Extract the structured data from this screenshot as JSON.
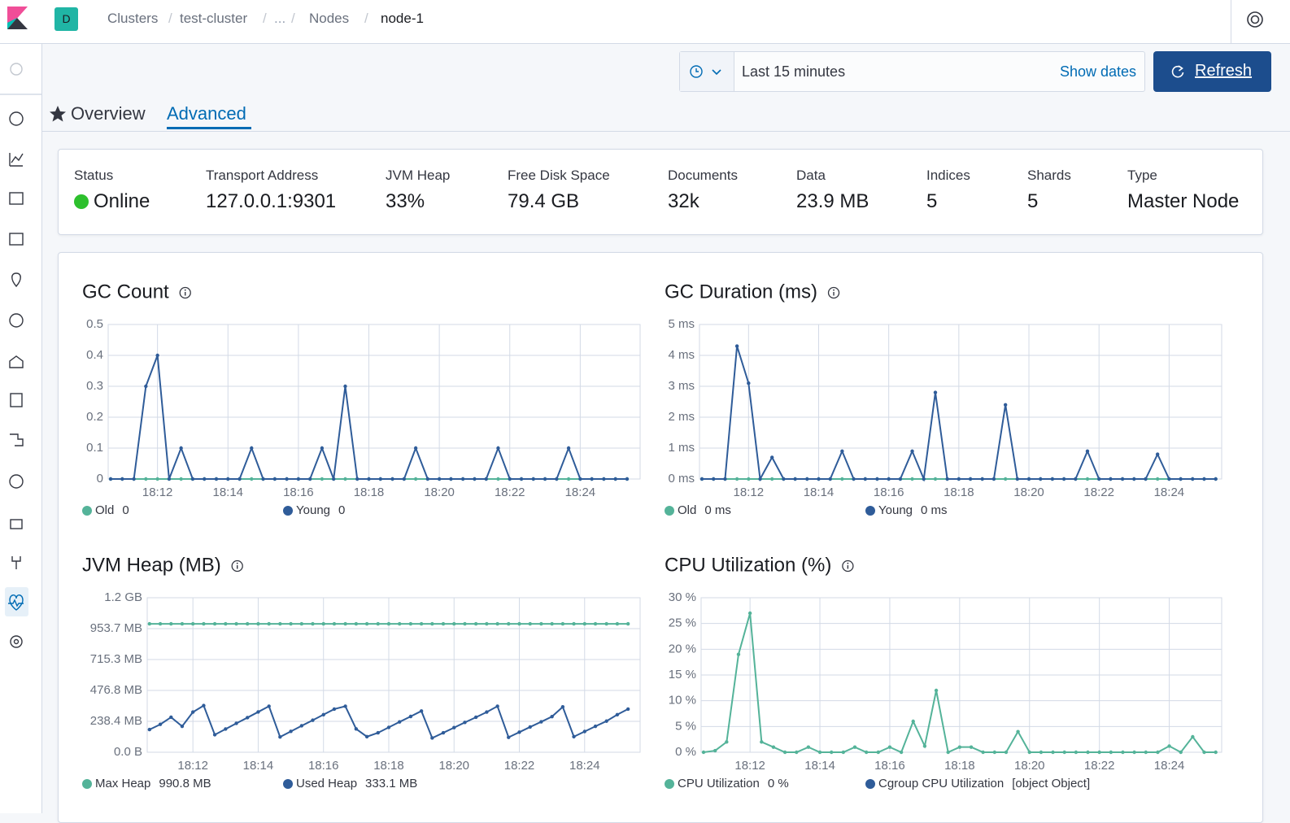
{
  "header": {
    "avatar": "D",
    "breadcrumbs": [
      "Clusters",
      "test-cluster",
      "...",
      "Nodes",
      "node-1"
    ]
  },
  "time_picker": {
    "range": "Last 15 minutes",
    "show_dates": "Show dates",
    "refresh": "Refresh"
  },
  "tabs": [
    "Overview",
    "Advanced"
  ],
  "stats": [
    {
      "label": "Status",
      "value": "Online"
    },
    {
      "label": "Transport Address",
      "value": "127.0.0.1:9301"
    },
    {
      "label": "JVM Heap",
      "value": "33%"
    },
    {
      "label": "Free Disk Space",
      "value": "79.4 GB"
    },
    {
      "label": "Documents",
      "value": "32k"
    },
    {
      "label": "Data",
      "value": "23.9 MB"
    },
    {
      "label": "Indices",
      "value": "5"
    },
    {
      "label": "Shards",
      "value": "5"
    },
    {
      "label": "Type",
      "value": "Master Node"
    }
  ],
  "chart_data": [
    {
      "type": "line",
      "title": "GC Count",
      "x": [
        10.67,
        11,
        11.33,
        11.67,
        12,
        12.33,
        12.67,
        13,
        13.33,
        13.67,
        14,
        14.33,
        14.67,
        15,
        15.33,
        15.67,
        16,
        16.33,
        16.67,
        17,
        17.33,
        17.67,
        18,
        18.33,
        18.67,
        19,
        19.33,
        19.67,
        20,
        20.33,
        20.67,
        21,
        21.33,
        21.67,
        22,
        22.33,
        22.67,
        23,
        23.33,
        23.67,
        24,
        24.33,
        24.67,
        25,
        25.33
      ],
      "xlim": [
        10.6,
        25.7
      ],
      "xticks": [
        {
          "value": 12,
          "label": "18:12"
        },
        {
          "value": 14,
          "label": "18:14"
        },
        {
          "value": 16,
          "label": "18:16"
        },
        {
          "value": 18,
          "label": "18:18"
        },
        {
          "value": 20,
          "label": "18:20"
        },
        {
          "value": 22,
          "label": "18:22"
        },
        {
          "value": 24,
          "label": "18:24"
        }
      ],
      "ylim": [
        0,
        0.5
      ],
      "yticks": [
        0,
        0.1,
        0.2,
        0.3,
        0.4,
        0.5
      ],
      "grid": true,
      "series": [
        {
          "name": "Old",
          "color": "#54b399",
          "legend_value": "0",
          "values": [
            0,
            0,
            0,
            0,
            0,
            0,
            0,
            0,
            0,
            0,
            0,
            0,
            0,
            0,
            0,
            0,
            0,
            0,
            0,
            0,
            0,
            0,
            0,
            0,
            0,
            0,
            0,
            0,
            0,
            0,
            0,
            0,
            0,
            0,
            0,
            0,
            0,
            0,
            0,
            0,
            0,
            0,
            0,
            0,
            0
          ]
        },
        {
          "name": "Young",
          "color": "#2f5c99",
          "legend_value": "0",
          "values": [
            0,
            0,
            0,
            0.3,
            0.4,
            0,
            0.1,
            0,
            0,
            0,
            0,
            0,
            0.1,
            0,
            0,
            0,
            0,
            0,
            0.1,
            0,
            0.3,
            0,
            0,
            0,
            0,
            0,
            0.1,
            0,
            0,
            0,
            0,
            0,
            0,
            0.1,
            0,
            0,
            0,
            0,
            0,
            0.1,
            0,
            0,
            0,
            0,
            0
          ]
        }
      ]
    },
    {
      "type": "line",
      "title": "GC Duration (ms)",
      "x": [
        10.67,
        11,
        11.33,
        11.67,
        12,
        12.33,
        12.67,
        13,
        13.33,
        13.67,
        14,
        14.33,
        14.67,
        15,
        15.33,
        15.67,
        16,
        16.33,
        16.67,
        17,
        17.33,
        17.67,
        18,
        18.33,
        18.67,
        19,
        19.33,
        19.67,
        20,
        20.33,
        20.67,
        21,
        21.33,
        21.67,
        22,
        22.33,
        22.67,
        23,
        23.33,
        23.67,
        24,
        24.33,
        24.67,
        25,
        25.33
      ],
      "xlim": [
        10.6,
        25.5
      ],
      "xticks": [
        {
          "value": 12,
          "label": "18:12"
        },
        {
          "value": 14,
          "label": "18:14"
        },
        {
          "value": 16,
          "label": "18:16"
        },
        {
          "value": 18,
          "label": "18:18"
        },
        {
          "value": 20,
          "label": "18:20"
        },
        {
          "value": 22,
          "label": "18:22"
        },
        {
          "value": 24,
          "label": "18:24"
        }
      ],
      "ylim": [
        0,
        5
      ],
      "yticks": [
        {
          "value": 0,
          "label": "0 ms"
        },
        {
          "value": 1,
          "label": "1 ms"
        },
        {
          "value": 2,
          "label": "2 ms"
        },
        {
          "value": 3,
          "label": "3 ms"
        },
        {
          "value": 4,
          "label": "4 ms"
        },
        {
          "value": 5,
          "label": "5 ms"
        }
      ],
      "grid": true,
      "series": [
        {
          "name": "Old",
          "color": "#54b399",
          "legend_value": "0 ms",
          "values": [
            0,
            0,
            0,
            0,
            0,
            0,
            0,
            0,
            0,
            0,
            0,
            0,
            0,
            0,
            0,
            0,
            0,
            0,
            0,
            0,
            0,
            0,
            0,
            0,
            0,
            0,
            0,
            0,
            0,
            0,
            0,
            0,
            0,
            0,
            0,
            0,
            0,
            0,
            0,
            0,
            0,
            0,
            0,
            0,
            0
          ]
        },
        {
          "name": "Young",
          "color": "#2f5c99",
          "legend_value": "0 ms",
          "values": [
            0,
            0,
            0,
            4.3,
            3.1,
            0,
            0.7,
            0,
            0,
            0,
            0,
            0,
            0.9,
            0,
            0,
            0,
            0,
            0,
            0.9,
            0,
            2.8,
            0,
            0,
            0,
            0,
            0,
            2.4,
            0,
            0,
            0,
            0,
            0,
            0,
            0.9,
            0,
            0,
            0,
            0,
            0,
            0.8,
            0,
            0,
            0,
            0,
            0
          ]
        }
      ]
    },
    {
      "type": "line",
      "title": "JVM Heap (MB)",
      "x": [
        10.67,
        11,
        11.33,
        11.67,
        12,
        12.33,
        12.67,
        13,
        13.33,
        13.67,
        14,
        14.33,
        14.67,
        15,
        15.33,
        15.67,
        16,
        16.33,
        16.67,
        17,
        17.33,
        17.67,
        18,
        18.33,
        18.67,
        19,
        19.33,
        19.67,
        20,
        20.33,
        20.67,
        21,
        21.33,
        21.67,
        22,
        22.33,
        22.67,
        23,
        23.33,
        23.67,
        24,
        24.33,
        24.67,
        25,
        25.33
      ],
      "xlim": [
        10.6,
        25.7
      ],
      "xticks": [
        {
          "value": 12,
          "label": "18:12"
        },
        {
          "value": 14,
          "label": "18:14"
        },
        {
          "value": 16,
          "label": "18:16"
        },
        {
          "value": 18,
          "label": "18:18"
        },
        {
          "value": 20,
          "label": "18:20"
        },
        {
          "value": 22,
          "label": "18:22"
        },
        {
          "value": 24,
          "label": "18:24"
        }
      ],
      "ylim": [
        0,
        1192.1
      ],
      "yticks": [
        {
          "value": 0,
          "label": "0.0 B"
        },
        {
          "value": 238.4,
          "label": "238.4 MB"
        },
        {
          "value": 476.8,
          "label": "476.8 MB"
        },
        {
          "value": 715.3,
          "label": "715.3 MB"
        },
        {
          "value": 953.7,
          "label": "953.7 MB"
        },
        {
          "value": 1192.1,
          "label": "1.2 GB"
        }
      ],
      "grid": true,
      "series": [
        {
          "name": "Max Heap",
          "color": "#54b399",
          "legend_value": "990.8 MB",
          "values": [
            990.8,
            990.8,
            990.8,
            990.8,
            990.8,
            990.8,
            990.8,
            990.8,
            990.8,
            990.8,
            990.8,
            990.8,
            990.8,
            990.8,
            990.8,
            990.8,
            990.8,
            990.8,
            990.8,
            990.8,
            990.8,
            990.8,
            990.8,
            990.8,
            990.8,
            990.8,
            990.8,
            990.8,
            990.8,
            990.8,
            990.8,
            990.8,
            990.8,
            990.8,
            990.8,
            990.8,
            990.8,
            990.8,
            990.8,
            990.8,
            990.8,
            990.8,
            990.8,
            990.8,
            990.8
          ]
        },
        {
          "name": "Used Heap",
          "color": "#2f5c99",
          "legend_value": "333.1 MB",
          "values": [
            175,
            215,
            270,
            200,
            310,
            360,
            135,
            179,
            223,
            267,
            311,
            355,
            118,
            161,
            204,
            247,
            290,
            333,
            355,
            180,
            120,
            150,
            192,
            234,
            276,
            318,
            110,
            150,
            190,
            230,
            270,
            310,
            355,
            115,
            155,
            195,
            235,
            275,
            350,
            120,
            160,
            200,
            240,
            290,
            333.1
          ]
        }
      ]
    },
    {
      "type": "line",
      "title": "CPU Utilization (%)",
      "x": [
        10.67,
        11,
        11.33,
        11.67,
        12,
        12.33,
        12.67,
        13,
        13.33,
        13.67,
        14,
        14.33,
        14.67,
        15,
        15.33,
        15.67,
        16,
        16.33,
        16.67,
        17,
        17.33,
        17.67,
        18,
        18.33,
        18.67,
        19,
        19.33,
        19.67,
        20,
        20.33,
        20.67,
        21,
        21.33,
        21.67,
        22,
        22.33,
        22.67,
        23,
        23.33,
        23.67,
        24,
        24.33,
        24.67,
        25,
        25.33
      ],
      "xlim": [
        10.6,
        25.5
      ],
      "xticks": [
        {
          "value": 12,
          "label": "18:12"
        },
        {
          "value": 14,
          "label": "18:14"
        },
        {
          "value": 16,
          "label": "18:16"
        },
        {
          "value": 18,
          "label": "18:18"
        },
        {
          "value": 20,
          "label": "18:20"
        },
        {
          "value": 22,
          "label": "18:22"
        },
        {
          "value": 24,
          "label": "18:24"
        }
      ],
      "ylim": [
        0,
        30
      ],
      "yticks": [
        {
          "value": 0,
          "label": "0 %"
        },
        {
          "value": 5,
          "label": "5 %"
        },
        {
          "value": 10,
          "label": "10 %"
        },
        {
          "value": 15,
          "label": "15 %"
        },
        {
          "value": 20,
          "label": "20 %"
        },
        {
          "value": 25,
          "label": "25 %"
        },
        {
          "value": 30,
          "label": "30 %"
        }
      ],
      "grid": true,
      "series": [
        {
          "name": "CPU Utilization",
          "color": "#54b399",
          "legend_value": "0 %",
          "values": [
            0,
            0.3,
            2,
            19,
            27,
            2,
            1,
            0,
            0,
            1,
            0,
            0,
            0,
            1,
            0,
            0,
            1,
            0,
            6,
            1.2,
            12,
            0,
            1,
            1,
            0,
            0,
            0,
            4,
            0,
            0,
            0,
            0,
            0,
            0,
            0,
            0,
            0,
            0,
            0,
            0,
            1.2,
            0,
            3,
            0,
            0
          ]
        },
        {
          "name": "Cgroup CPU Utilization",
          "color": "#2f5c99",
          "legend_value": "[object Object]",
          "values": [
            null,
            null,
            null,
            null,
            null,
            null,
            null,
            null,
            null,
            null,
            null,
            null,
            null,
            null,
            null,
            null,
            null,
            null,
            null,
            null,
            null,
            null,
            null,
            null,
            null,
            null,
            null,
            null,
            null,
            null,
            null,
            null,
            null,
            null,
            null,
            null,
            null,
            null,
            null,
            null,
            null,
            null,
            null,
            null,
            null
          ]
        }
      ]
    }
  ]
}
